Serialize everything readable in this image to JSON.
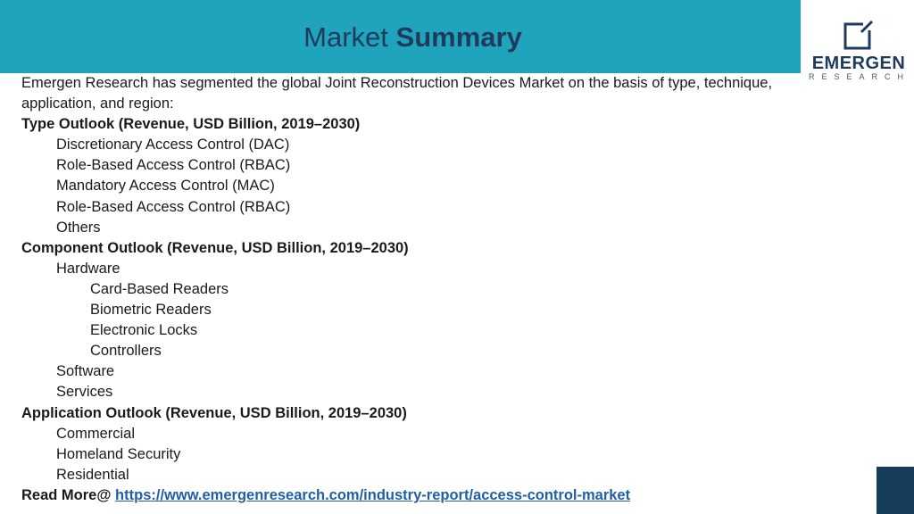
{
  "header": {
    "title_light": "Market",
    "title_bold": "Summary",
    "bar_color": "#20a3bd",
    "title_color": "#1f3b5c"
  },
  "logo": {
    "name": "EMERGEN",
    "sub": "RESEARCH",
    "icon": "emergen-square-mark-icon"
  },
  "intro": "Emergen Research has segmented the global Joint Reconstruction Devices Market on the basis of type, technique, application, and region:",
  "sections": [
    {
      "heading": "Type Outlook (Revenue, USD Billion, 2019–2030)",
      "items": [
        "Discretionary Access Control (DAC)",
        "Role-Based Access Control (RBAC)",
        "Mandatory Access Control (MAC)",
        "Role-Based Access Control (RBAC)",
        "Others"
      ]
    },
    {
      "heading": "Component Outlook (Revenue, USD Billion, 2019–2030)",
      "hardware": {
        "label": "Hardware",
        "subitems": [
          "Card-Based Readers",
          "Biometric Readers",
          "Electronic Locks",
          "Controllers"
        ]
      },
      "items": [
        "Software",
        "Services"
      ]
    },
    {
      "heading": "Application Outlook (Revenue, USD Billion, 2019–2030)",
      "items": [
        "Commercial",
        "Homeland Security",
        "Residential"
      ]
    }
  ],
  "read_more": {
    "label": "Read More@",
    "link_text": "https://www.emergenresearch.com/industry-report/access-control-market"
  },
  "colors": {
    "accent": "#20a3bd",
    "dark": "#163d5c",
    "link": "#1f5fa8"
  }
}
